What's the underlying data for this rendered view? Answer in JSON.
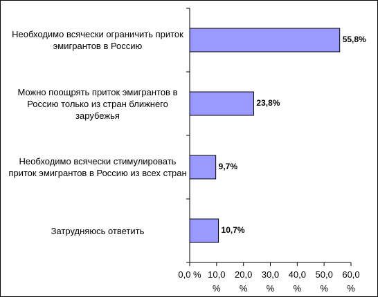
{
  "chart_data": {
    "type": "barh",
    "categories": [
      "Необходимо всячески ограничить приток эмигрантов в Россию",
      "Можно поощрять приток эмигрантов в Россию только из стран ближнего зарубежья",
      "Необходимо всячески стимулировать приток эмигрантов в Россию из всех стран",
      "Затрудняюсь ответить"
    ],
    "values": [
      55.8,
      23.8,
      9.7,
      10.7
    ],
    "value_labels": [
      "55,8%",
      "23,8%",
      "9,7%",
      "10,7%"
    ],
    "color": "#9999ff",
    "xlim": [
      0,
      60
    ],
    "xticks": [
      {
        "value": 0,
        "label": "0,0 %"
      },
      {
        "value": 10,
        "label": "10,0 %"
      },
      {
        "value": 20,
        "label": "20,0 %"
      },
      {
        "value": 30,
        "label": "30,0 %"
      },
      {
        "value": 40,
        "label": "40,0 %"
      },
      {
        "value": 50,
        "label": "50,0 %"
      },
      {
        "value": 60,
        "label": "60,0 %"
      }
    ],
    "grid": false
  }
}
